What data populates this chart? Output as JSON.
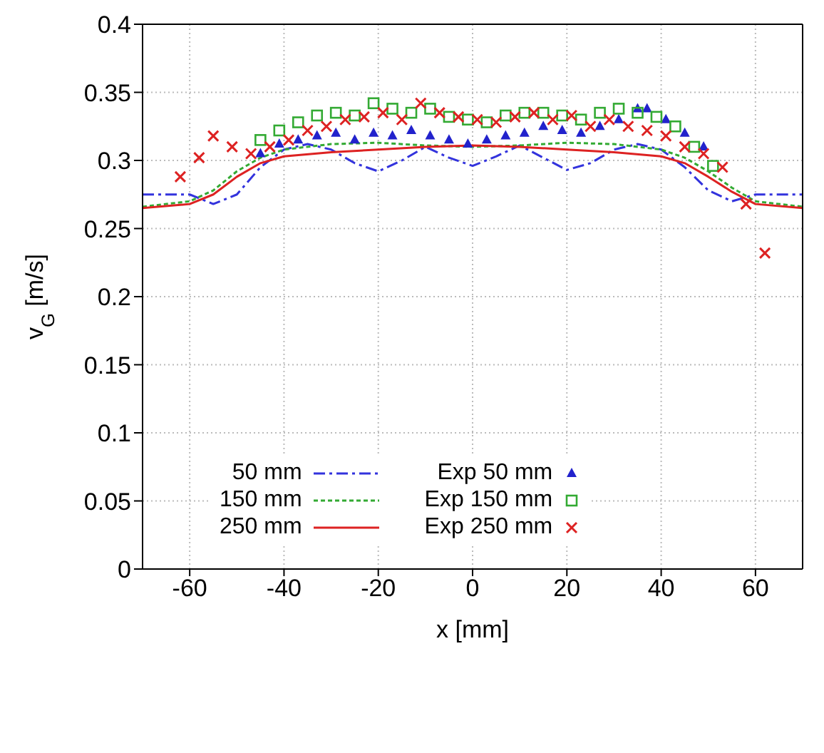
{
  "chart_data": {
    "type": "line",
    "xlabel": "x [mm]",
    "ylabel": "v$_{G}$ [m/s]",
    "xlim": [
      -70,
      70
    ],
    "ylim": [
      0,
      0.4
    ],
    "xticks": [
      -60,
      -40,
      -20,
      0,
      20,
      40,
      60
    ],
    "yticks": [
      0,
      0.05,
      0.1,
      0.15,
      0.2,
      0.25,
      0.3,
      0.35,
      0.4
    ],
    "grid": true,
    "legend": "bottom",
    "series": [
      {
        "name": "50 mm",
        "color": "#3333dd",
        "line_style": "dashed",
        "marker": "none",
        "x": [
          -70,
          -60,
          -55,
          -50,
          -45,
          -40,
          -35,
          -30,
          -25,
          -20,
          -15,
          -10,
          -5,
          0,
          5,
          10,
          15,
          20,
          25,
          30,
          35,
          40,
          45,
          50,
          55,
          60,
          70
        ],
        "values": [
          0.275,
          0.275,
          0.268,
          0.275,
          0.295,
          0.308,
          0.312,
          0.308,
          0.298,
          0.292,
          0.3,
          0.31,
          0.302,
          0.296,
          0.303,
          0.311,
          0.302,
          0.293,
          0.298,
          0.308,
          0.312,
          0.308,
          0.295,
          0.278,
          0.27,
          0.275,
          0.275
        ]
      },
      {
        "name": "150 mm",
        "color": "#33aa33",
        "line_style": "dotted",
        "marker": "none",
        "x": [
          -70,
          -60,
          -55,
          -50,
          -45,
          -40,
          -30,
          -20,
          -10,
          0,
          10,
          20,
          30,
          40,
          45,
          50,
          55,
          60,
          70
        ],
        "values": [
          0.266,
          0.27,
          0.278,
          0.292,
          0.302,
          0.308,
          0.312,
          0.313,
          0.311,
          0.31,
          0.311,
          0.313,
          0.312,
          0.308,
          0.302,
          0.292,
          0.28,
          0.27,
          0.266
        ]
      },
      {
        "name": "250 mm",
        "color": "#dd2222",
        "line_style": "solid",
        "marker": "none",
        "x": [
          -70,
          -60,
          -55,
          -50,
          -45,
          -40,
          -30,
          -20,
          -10,
          0,
          10,
          20,
          30,
          40,
          45,
          50,
          55,
          60,
          70
        ],
        "values": [
          0.265,
          0.268,
          0.275,
          0.288,
          0.298,
          0.303,
          0.306,
          0.308,
          0.31,
          0.311,
          0.31,
          0.308,
          0.306,
          0.303,
          0.298,
          0.288,
          0.277,
          0.268,
          0.265
        ]
      },
      {
        "name": "Exp 50 mm",
        "type": "scatter",
        "color": "#2222cc",
        "marker": "triangle",
        "x": [
          -45,
          -41,
          -37,
          -33,
          -29,
          -25,
          -21,
          -17,
          -13,
          -9,
          -5,
          -1,
          3,
          7,
          11,
          15,
          19,
          23,
          27,
          31,
          35,
          37,
          41,
          45,
          49
        ],
        "values": [
          0.305,
          0.312,
          0.315,
          0.318,
          0.32,
          0.315,
          0.32,
          0.318,
          0.322,
          0.318,
          0.315,
          0.312,
          0.315,
          0.318,
          0.32,
          0.325,
          0.322,
          0.32,
          0.325,
          0.33,
          0.338,
          0.338,
          0.33,
          0.32,
          0.31
        ]
      },
      {
        "name": "Exp 150 mm",
        "type": "scatter",
        "color": "#33aa33",
        "marker": "square",
        "x": [
          -45,
          -41,
          -37,
          -33,
          -29,
          -25,
          -21,
          -17,
          -13,
          -9,
          -5,
          -1,
          3,
          7,
          11,
          15,
          19,
          23,
          27,
          31,
          35,
          39,
          43,
          47,
          51
        ],
        "values": [
          0.315,
          0.322,
          0.328,
          0.333,
          0.335,
          0.333,
          0.342,
          0.338,
          0.335,
          0.338,
          0.332,
          0.33,
          0.328,
          0.333,
          0.335,
          0.335,
          0.333,
          0.33,
          0.335,
          0.338,
          0.335,
          0.332,
          0.325,
          0.31,
          0.296
        ]
      },
      {
        "name": "Exp 250 mm",
        "type": "scatter",
        "color": "#dd2222",
        "marker": "cross",
        "x": [
          -62,
          -58,
          -55,
          -51,
          -47,
          -43,
          -39,
          -35,
          -31,
          -27,
          -23,
          -19,
          -15,
          -11,
          -7,
          -3,
          1,
          5,
          9,
          13,
          17,
          21,
          25,
          29,
          33,
          37,
          41,
          45,
          49,
          53,
          58,
          62
        ],
        "values": [
          0.288,
          0.302,
          0.318,
          0.31,
          0.305,
          0.31,
          0.315,
          0.322,
          0.325,
          0.33,
          0.332,
          0.335,
          0.33,
          0.342,
          0.335,
          0.332,
          0.33,
          0.328,
          0.332,
          0.335,
          0.33,
          0.333,
          0.325,
          0.33,
          0.325,
          0.322,
          0.318,
          0.31,
          0.305,
          0.295,
          0.268,
          0.232
        ]
      }
    ]
  }
}
